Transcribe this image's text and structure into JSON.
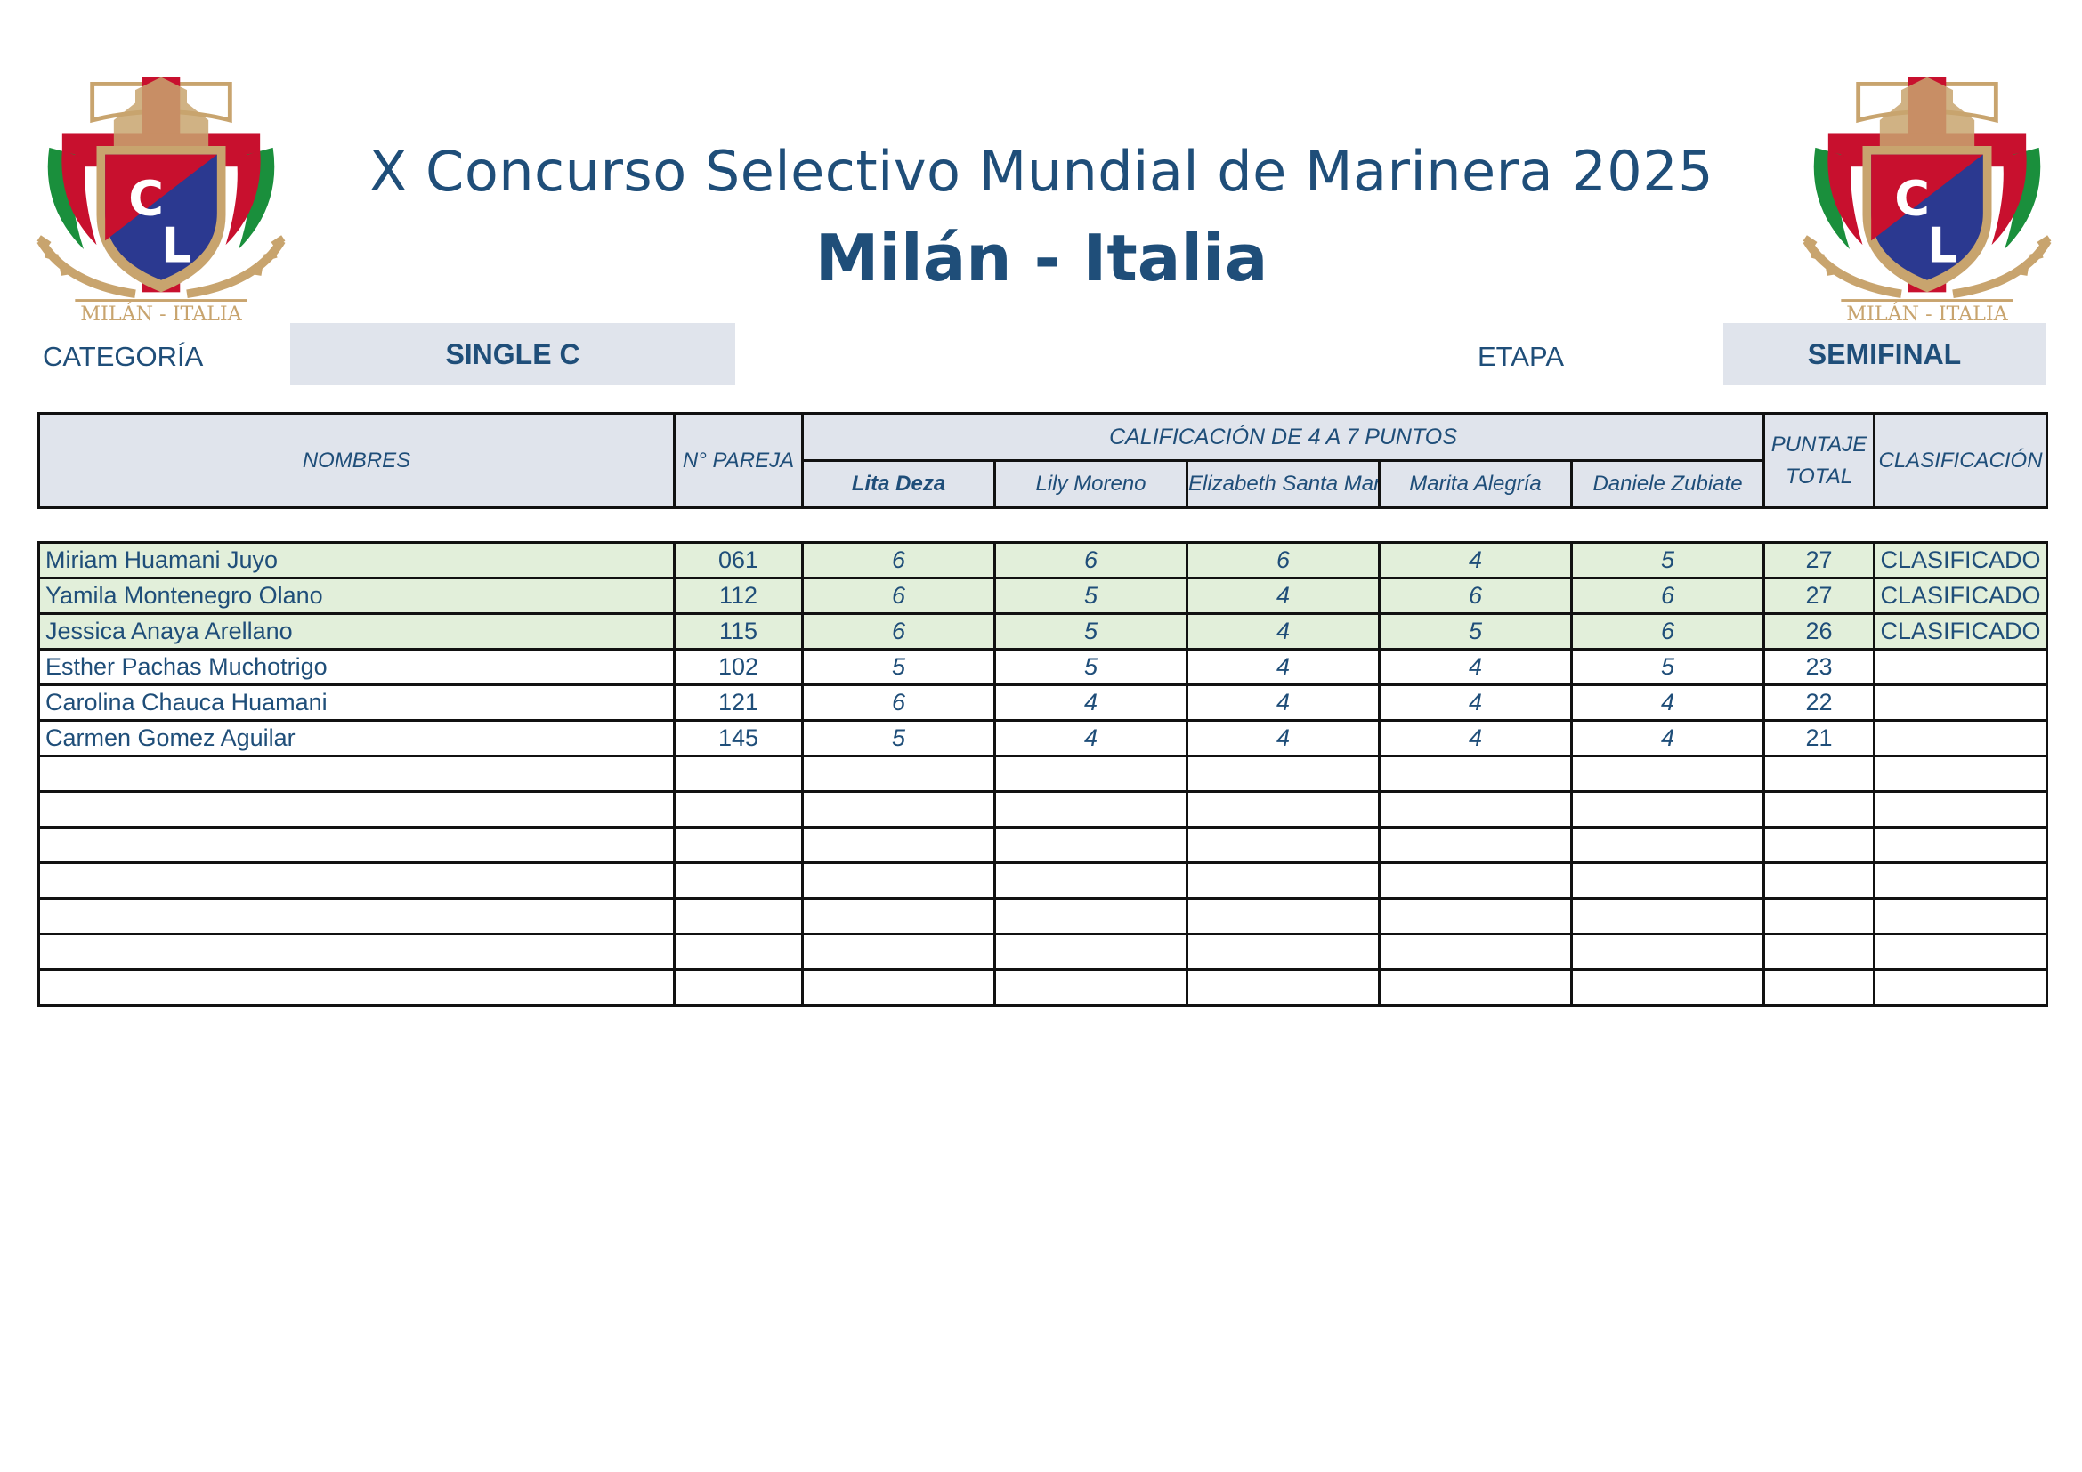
{
  "header": {
    "title_line1": "X Concurso Selectivo Mundial de Marinera 2025",
    "title_line2": "Milán - Italia",
    "logo_text": "MILÁN - ITALIA",
    "logo_letters": [
      "C",
      "L"
    ]
  },
  "info": {
    "category_label": "CATEGORÍA",
    "category_value": "SINGLE C",
    "stage_label": "ETAPA",
    "stage_value": "SEMIFINAL"
  },
  "table": {
    "headers": {
      "names": "NOMBRES",
      "pair_number": "N° PAREJA",
      "grading": "CALIFICACIÓN DE 4 A 7 PUNTOS",
      "total": "PUNTAJE TOTAL",
      "classification": "CLASIFICACIÓN"
    },
    "judges": [
      "Lita Deza",
      "Lily Moreno",
      "Elizabeth Santa María",
      "Marita Alegría",
      "Daniele Zubiate"
    ],
    "rows": [
      {
        "name": "Miriam Huamani Juyo",
        "pair": "061",
        "scores": [
          "6",
          "6",
          "6",
          "4",
          "5"
        ],
        "total": "27",
        "status": "CLASIFICADO"
      },
      {
        "name": "Yamila Montenegro Olano",
        "pair": "112",
        "scores": [
          "6",
          "5",
          "4",
          "6",
          "6"
        ],
        "total": "27",
        "status": "CLASIFICADO"
      },
      {
        "name": "Jessica Anaya Arellano",
        "pair": "115",
        "scores": [
          "6",
          "5",
          "4",
          "5",
          "6"
        ],
        "total": "26",
        "status": "CLASIFICADO"
      },
      {
        "name": "Esther Pachas Muchotrigo",
        "pair": "102",
        "scores": [
          "5",
          "5",
          "4",
          "4",
          "5"
        ],
        "total": "23",
        "status": ""
      },
      {
        "name": "Carolina Chauca Huamani",
        "pair": "121",
        "scores": [
          "6",
          "4",
          "4",
          "4",
          "4"
        ],
        "total": "22",
        "status": ""
      },
      {
        "name": "Carmen Gomez Aguilar",
        "pair": "145",
        "scores": [
          "5",
          "4",
          "4",
          "4",
          "4"
        ],
        "total": "21",
        "status": ""
      }
    ],
    "empty_rows": 7
  },
  "colors": {
    "text": "#1f4e79",
    "header_fill": "#e0e4ec",
    "qualified_fill": "#e2efda",
    "cross_red": "#c8102e",
    "shield_blue": "#2b3990",
    "gold": "#c8a46e",
    "italy_green": "#1a8f3c"
  }
}
